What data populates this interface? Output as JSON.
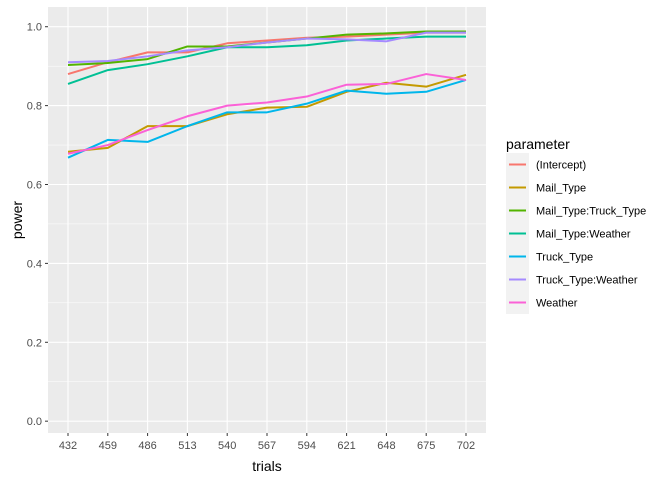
{
  "chart_data": {
    "type": "line",
    "xlabel": "trials",
    "ylabel": "power",
    "x": [
      432,
      459,
      486,
      513,
      540,
      567,
      594,
      621,
      648,
      675,
      702
    ],
    "x_ticks": [
      "432",
      "459",
      "486",
      "513",
      "540",
      "567",
      "594",
      "621",
      "648",
      "675",
      "702"
    ],
    "y_ticks": [
      "0.0",
      "0.2",
      "0.4",
      "0.6",
      "0.8",
      "1.0"
    ],
    "ylim": [
      -0.03,
      1.05
    ],
    "grid": true,
    "legend_title": "parameter",
    "legend_position": "right",
    "series": [
      {
        "name": "(Intercept)",
        "color": "#F8766D",
        "values": [
          0.88,
          0.91,
          0.935,
          0.935,
          0.958,
          0.965,
          0.972,
          0.975,
          0.98,
          0.985,
          0.985
        ]
      },
      {
        "name": "Mail_Type",
        "color": "#C49A00",
        "values": [
          0.683,
          0.693,
          0.748,
          0.748,
          0.778,
          0.795,
          0.797,
          0.835,
          0.858,
          0.848,
          0.878
        ]
      },
      {
        "name": "Mail_Type:Truck_Type",
        "color": "#53B400",
        "values": [
          0.903,
          0.908,
          0.918,
          0.95,
          0.95,
          0.96,
          0.97,
          0.98,
          0.983,
          0.988,
          0.988
        ]
      },
      {
        "name": "Mail_Type:Weather",
        "color": "#00C094",
        "values": [
          0.855,
          0.89,
          0.905,
          0.925,
          0.948,
          0.948,
          0.953,
          0.965,
          0.97,
          0.975,
          0.975
        ]
      },
      {
        "name": "Truck_Type",
        "color": "#00B6EB",
        "values": [
          0.668,
          0.713,
          0.708,
          0.748,
          0.783,
          0.783,
          0.805,
          0.838,
          0.83,
          0.835,
          0.865
        ]
      },
      {
        "name": "Truck_Type:Weather",
        "color": "#A58AFF",
        "values": [
          0.91,
          0.913,
          0.925,
          0.94,
          0.948,
          0.96,
          0.97,
          0.968,
          0.963,
          0.985,
          0.985
        ]
      },
      {
        "name": "Weather",
        "color": "#FB61D7",
        "values": [
          0.678,
          0.7,
          0.738,
          0.773,
          0.8,
          0.808,
          0.823,
          0.853,
          0.855,
          0.88,
          0.865
        ]
      }
    ]
  }
}
